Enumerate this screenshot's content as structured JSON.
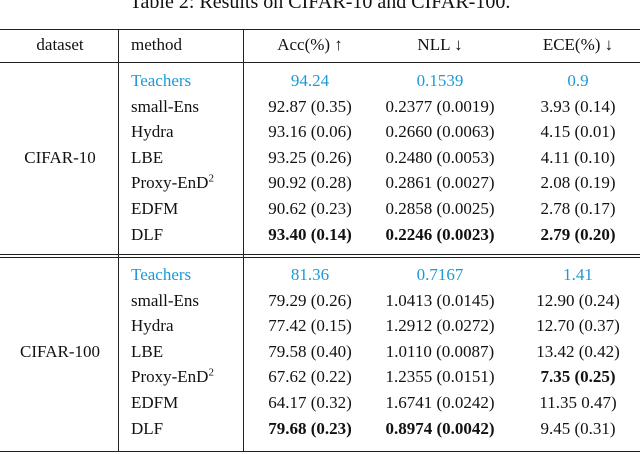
{
  "title": "Table 2: Results on CIFAR-10 and CIFAR-100.",
  "table": {
    "header": [
      "dataset",
      "method",
      "Acc(%) ↑",
      "NLL ↓",
      "ECE(%) ↓"
    ],
    "groups": [
      {
        "dataset": "CIFAR-10",
        "rows": [
          {
            "method": "Teachers",
            "cells": [
              "94.24",
              "0.1539",
              "0.9"
            ],
            "highlight": true
          },
          {
            "method": "small-Ens",
            "cells": [
              "92.87 (0.35)",
              "0.2377 (0.0019)",
              "3.93 (0.14)"
            ]
          },
          {
            "method": "Hydra",
            "cells": [
              "93.16 (0.06)",
              "0.2660 (0.0063)",
              "4.15 (0.01)"
            ]
          },
          {
            "method": "LBE",
            "cells": [
              "93.25 (0.26)",
              "0.2480 (0.0053)",
              "4.11 (0.10)"
            ]
          },
          {
            "method": {
              "text": "Proxy-EnD",
              "sup": "2"
            },
            "cells": [
              "90.92 (0.28)",
              "0.2861 (0.0027)",
              "2.08 (0.19)"
            ]
          },
          {
            "method": "EDFM",
            "cells": [
              "90.62 (0.23)",
              "0.2858 (0.0025)",
              "2.78 (0.17)"
            ]
          },
          {
            "method": "DLF",
            "cells": [
              "93.40 (0.14)",
              "0.2246 (0.0023)",
              "2.79 (0.20)"
            ],
            "bold": [
              0,
              1,
              2
            ]
          }
        ]
      },
      {
        "dataset": "CIFAR-100",
        "rows": [
          {
            "method": "Teachers",
            "cells": [
              "81.36",
              "0.7167",
              "1.41"
            ],
            "highlight": true
          },
          {
            "method": "small-Ens",
            "cells": [
              "79.29 (0.26)",
              "1.0413 (0.0145)",
              "12.90 (0.24)"
            ]
          },
          {
            "method": "Hydra",
            "cells": [
              "77.42 (0.15)",
              "1.2912 (0.0272)",
              "12.70 (0.37)"
            ]
          },
          {
            "method": "LBE",
            "cells": [
              "79.58 (0.40)",
              "1.0110 (0.0087)",
              "13.42 (0.42)"
            ]
          },
          {
            "method": {
              "text": "Proxy-EnD",
              "sup": "2"
            },
            "cells": [
              "67.62 (0.22)",
              "1.2355 (0.0151)",
              "7.35 (0.25)"
            ],
            "bold": [
              2
            ]
          },
          {
            "method": "EDFM",
            "cells": [
              "64.17 (0.32)",
              "1.6741 (0.0242)",
              "11.35 0.47)"
            ]
          },
          {
            "method": "DLF",
            "cells": [
              "79.68 (0.23)",
              "0.8974 (0.0042)",
              "9.45 (0.31)"
            ],
            "bold": [
              0,
              1
            ]
          }
        ]
      }
    ]
  }
}
